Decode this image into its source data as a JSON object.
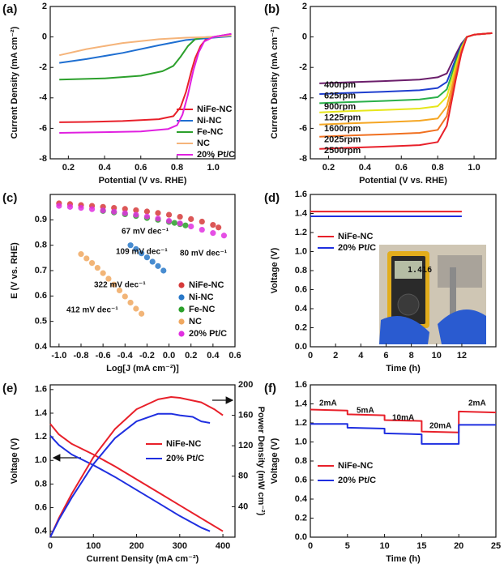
{
  "chart_data": [
    {
      "panel": "(a)",
      "type": "line",
      "xlabel": "Potential (V vs. RHE)",
      "ylabel": "Current Density (mA cm⁻²)",
      "xlim": [
        0.1,
        1.12
      ],
      "ylim": [
        -8,
        2
      ],
      "xticks": [
        0.2,
        0.4,
        0.6,
        0.8,
        {
          "value": 1,
          "label": "1.0"
        }
      ],
      "yticks": [
        -8,
        -6,
        -4,
        -2,
        0,
        2
      ],
      "series": [
        {
          "name": "NiFe-NC",
          "color": "#e8202a",
          "x": [
            0.15,
            0.3,
            0.5,
            0.7,
            0.78,
            0.82,
            0.85,
            0.88,
            0.9,
            0.93,
            0.96,
            1.0,
            1.05,
            1.1
          ],
          "values": [
            -5.6,
            -5.58,
            -5.52,
            -5.4,
            -5.2,
            -4.6,
            -3.6,
            -2.2,
            -1.4,
            -0.6,
            -0.15,
            0.0,
            0.1,
            0.2
          ]
        },
        {
          "name": "Ni-NC",
          "color": "#1f6fd1",
          "x": [
            0.15,
            0.3,
            0.5,
            0.7,
            0.85,
            1.0,
            1.1
          ],
          "values": [
            -1.7,
            -1.45,
            -1.05,
            -0.55,
            -0.2,
            -0.05,
            0.05
          ]
        },
        {
          "name": "Fe-NC",
          "color": "#2ca02c",
          "x": [
            0.15,
            0.4,
            0.6,
            0.72,
            0.78,
            0.82,
            0.86,
            0.9,
            0.95,
            1.0,
            1.1
          ],
          "values": [
            -2.8,
            -2.72,
            -2.55,
            -2.25,
            -1.9,
            -1.3,
            -0.6,
            -0.15,
            -0.02,
            0.0,
            0.1
          ]
        },
        {
          "name": "NC",
          "color": "#f5b47a",
          "x": [
            0.15,
            0.3,
            0.5,
            0.7,
            0.85,
            1.0,
            1.1
          ],
          "values": [
            -1.2,
            -0.8,
            -0.4,
            -0.15,
            -0.05,
            0.0,
            0.1
          ]
        },
        {
          "name": "20% Pt/C",
          "color": "#e020e0",
          "x": [
            0.15,
            0.4,
            0.6,
            0.75,
            0.8,
            0.83,
            0.86,
            0.89,
            0.92,
            0.95,
            1.0,
            1.05,
            1.1
          ],
          "values": [
            -6.3,
            -6.25,
            -6.2,
            -6.05,
            -5.8,
            -5.1,
            -3.8,
            -2.2,
            -1.0,
            -0.3,
            0.0,
            0.1,
            0.2
          ]
        }
      ]
    },
    {
      "panel": "(b)",
      "type": "line",
      "xlabel": "Potential (V vs. RHE)",
      "ylabel": "Current Density (mA cm⁻²)",
      "xlim": [
        0.1,
        1.12
      ],
      "ylim": [
        -8,
        2
      ],
      "xticks": [
        0.2,
        0.4,
        0.6,
        0.8,
        {
          "value": 1,
          "label": "1.0"
        }
      ],
      "yticks": [
        -8,
        -6,
        -4,
        -2,
        0,
        2
      ],
      "x": [
        0.15,
        0.3,
        0.5,
        0.7,
        0.8,
        0.85,
        0.88,
        0.9,
        0.93,
        0.96,
        1.0,
        1.1
      ],
      "series": [
        {
          "name": "400rpm",
          "color": "#6b1e6b",
          "values": [
            -3.05,
            -2.98,
            -2.9,
            -2.8,
            -2.65,
            -2.4,
            -1.65,
            -1.14,
            -0.45,
            0,
            0.15,
            0.25
          ]
        },
        {
          "name": "625rpm",
          "color": "#1f3fcf",
          "values": [
            -3.75,
            -3.68,
            -3.6,
            -3.5,
            -3.35,
            -2.96,
            -2.04,
            -1.41,
            -0.56,
            0,
            0.15,
            0.25
          ]
        },
        {
          "name": "900rpm",
          "color": "#2ab04a",
          "values": [
            -4.35,
            -4.28,
            -4.2,
            -4.1,
            -3.95,
            -3.44,
            -2.37,
            -1.63,
            -0.65,
            0,
            0.15,
            0.25
          ]
        },
        {
          "name": "1225rpm",
          "color": "#e6e61a",
          "values": [
            -4.95,
            -4.88,
            -4.8,
            -4.7,
            -4.55,
            -3.92,
            -2.7,
            -1.86,
            -0.74,
            0,
            0.15,
            0.25
          ]
        },
        {
          "name": "1600rpm",
          "color": "#f5a623",
          "values": [
            -5.75,
            -5.68,
            -5.6,
            -5.5,
            -5.35,
            -4.56,
            -3.14,
            -2.17,
            -0.86,
            0,
            0.15,
            0.25
          ]
        },
        {
          "name": "2025rpm",
          "color": "#f07020",
          "values": [
            -6.55,
            -6.48,
            -6.4,
            -6.3,
            -6.1,
            -5.2,
            -3.58,
            -2.47,
            -0.98,
            0,
            0.15,
            0.25
          ]
        },
        {
          "name": "2500rpm",
          "color": "#e8202a",
          "values": [
            -7.35,
            -7.28,
            -7.2,
            -7.1,
            -6.9,
            -5.84,
            -4.02,
            -2.77,
            -1.1,
            0,
            0.15,
            0.25
          ]
        }
      ]
    },
    {
      "panel": "(c)",
      "type": "scatter",
      "xlabel": "Log[J (mA cm⁻²)]",
      "ylabel": "E (V vs. RHE)",
      "xlim": [
        -1.08,
        0.6
      ],
      "ylim": [
        0.4,
        1.0
      ],
      "xticks": [
        {
          "value": -1,
          "label": "-1.0"
        },
        -0.8,
        -0.6,
        -0.4,
        -0.2,
        {
          "value": 0,
          "label": "0.0"
        },
        0.2,
        0.4,
        0.6
      ],
      "yticks": [
        0.4,
        0.5,
        0.6,
        0.7,
        0.8,
        0.9
      ],
      "series": [
        {
          "name": "NiFe-NC",
          "color": "#d63a3a",
          "x": [
            -1.0,
            -0.9,
            -0.8,
            -0.7,
            -0.6,
            -0.5,
            -0.4,
            -0.3,
            -0.2,
            -0.1,
            0.0,
            0.1,
            0.2,
            0.3,
            0.4,
            0.45
          ],
          "values": [
            0.965,
            0.962,
            0.958,
            0.955,
            0.951,
            0.947,
            0.943,
            0.938,
            0.933,
            0.927,
            0.92,
            0.912,
            0.903,
            0.893,
            0.88,
            0.87
          ]
        },
        {
          "name": "Ni-NC",
          "color": "#2878c8",
          "x": [
            -0.35,
            -0.3,
            -0.25,
            -0.2,
            -0.15,
            -0.1,
            -0.05
          ],
          "values": [
            0.8,
            0.785,
            0.768,
            0.752,
            0.735,
            0.718,
            0.7
          ]
        },
        {
          "name": "Fe-NC",
          "color": "#2aa02a",
          "x": [
            -0.6,
            -0.5,
            -0.4,
            -0.3,
            -0.2,
            -0.1,
            0.0,
            0.05,
            0.1,
            0.15
          ],
          "values": [
            0.935,
            0.929,
            0.922,
            0.915,
            0.907,
            0.9,
            0.892,
            0.888,
            0.883,
            0.878
          ]
        },
        {
          "name": "NC",
          "color": "#f0a860",
          "x": [
            -0.8,
            -0.75,
            -0.7,
            -0.65,
            -0.6,
            -0.55,
            -0.5,
            -0.45,
            -0.4,
            -0.35,
            -0.3,
            -0.25
          ],
          "values": [
            0.765,
            0.748,
            0.73,
            0.711,
            0.69,
            0.668,
            0.645,
            0.622,
            0.598,
            0.574,
            0.55,
            0.53
          ]
        },
        {
          "name": "20% Pt/C",
          "color": "#e030e0",
          "x": [
            -1.0,
            -0.9,
            -0.8,
            -0.7,
            -0.6,
            -0.5,
            -0.4,
            -0.3,
            -0.2,
            -0.1,
            0.0,
            0.1,
            0.2,
            0.3,
            0.4,
            0.5
          ],
          "values": [
            0.955,
            0.951,
            0.947,
            0.942,
            0.937,
            0.932,
            0.926,
            0.92,
            0.913,
            0.905,
            0.896,
            0.886,
            0.874,
            0.861,
            0.848,
            0.838
          ]
        }
      ],
      "annotations": [
        {
          "text": "67 mV dec⁻¹",
          "color": "#d63a3a"
        },
        {
          "text": "109 mV dec⁻¹",
          "color": "#2aa02a"
        },
        {
          "text": "80 mV dec⁻¹",
          "color": "#e030e0"
        },
        {
          "text": "322 mV dec⁻¹",
          "color": "#2878c8"
        },
        {
          "text": "412 mV dec⁻¹",
          "color": "#f0a860"
        }
      ]
    },
    {
      "panel": "(d)",
      "type": "line",
      "xlabel": "Time (h)",
      "ylabel": "Voltage (V)",
      "xlim": [
        0,
        14.7
      ],
      "ylim": [
        0,
        1.6
      ],
      "xticks": [
        0,
        2,
        4,
        6,
        8,
        10,
        12
      ],
      "yticks": [
        {
          "value": 0,
          "label": "0.0"
        },
        0.2,
        0.4,
        0.6,
        0.8,
        {
          "value": 1,
          "label": "1.0"
        },
        1.2,
        1.4,
        1.6
      ],
      "x": [
        0,
        12
      ],
      "series": [
        {
          "name": "NiFe-NC",
          "color": "#e8202a",
          "values": [
            1.42,
            1.42
          ]
        },
        {
          "name": "20% Pt/C",
          "color": "#1f2fe0",
          "values": [
            1.37,
            1.37
          ]
        }
      ],
      "annotations": [
        {
          "text": "1.416",
          "color": "#1a1a1a"
        }
      ]
    },
    {
      "panel": "(e)",
      "type": "line",
      "xlabel": "Current Density (mA cm⁻²)",
      "ylabel": "Voltage (V)",
      "y2label": "Power Density (mW cm⁻²)",
      "xlim": [
        0,
        428
      ],
      "ylim": [
        0.35,
        1.64
      ],
      "y2lim": [
        0,
        200
      ],
      "xticks": [
        0,
        100,
        200,
        300,
        400
      ],
      "yticks": [
        0.4,
        0.6,
        0.8,
        {
          "value": 1,
          "label": "1.0"
        },
        1.2,
        1.4,
        1.6
      ],
      "y2ticks": [
        40,
        80,
        120,
        160,
        200
      ],
      "series": [
        {
          "name": "NiFe-NC",
          "color": "#e8202a",
          "x": [
            0,
            20,
            50,
            100,
            150,
            200,
            250,
            300,
            350,
            400
          ],
          "values": [
            1.31,
            1.22,
            1.14,
            1.05,
            0.95,
            0.84,
            0.73,
            0.62,
            0.51,
            0.4
          ]
        },
        {
          "name": "20% Pt/C",
          "color": "#1f2fe0",
          "x": [
            0,
            20,
            50,
            100,
            150,
            200,
            250,
            300,
            350,
            370
          ],
          "values": [
            1.21,
            1.13,
            1.05,
            0.96,
            0.86,
            0.75,
            0.64,
            0.53,
            0.43,
            0.4
          ]
        },
        {
          "color": "#e8202a",
          "axis": "y2",
          "x": [
            0,
            20,
            50,
            100,
            150,
            200,
            250,
            280,
            300,
            350,
            380,
            400
          ],
          "values": [
            0,
            25,
            57,
            105,
            142,
            168,
            181,
            184,
            183,
            177,
            168,
            160
          ]
        },
        {
          "color": "#1f2fe0",
          "axis": "y2",
          "x": [
            0,
            20,
            50,
            100,
            150,
            200,
            250,
            280,
            300,
            330,
            350,
            370
          ],
          "values": [
            0,
            23,
            52,
            96,
            130,
            152,
            162,
            162,
            160,
            158,
            152,
            150
          ]
        }
      ]
    },
    {
      "panel": "(f)",
      "type": "line",
      "xlabel": "Time (h)",
      "ylabel": "Voltage (V)",
      "xlim": [
        0,
        25
      ],
      "ylim": [
        0,
        1.6
      ],
      "xticks": [
        0,
        5,
        10,
        15,
        20,
        25
      ],
      "yticks": [
        {
          "value": 0,
          "label": "0.0"
        },
        0.2,
        0.4,
        0.6,
        0.8,
        {
          "value": 1,
          "label": "1.0"
        },
        1.2,
        1.4,
        1.6
      ],
      "x": [
        0,
        5,
        5,
        10,
        10,
        15,
        15,
        20,
        20,
        25
      ],
      "series": [
        {
          "name": "NiFe-NC",
          "color": "#e8202a",
          "values": [
            1.34,
            1.33,
            1.29,
            1.28,
            1.23,
            1.22,
            1.11,
            1.1,
            1.32,
            1.31
          ]
        },
        {
          "name": "20% Pt/C",
          "color": "#1f2fe0",
          "values": [
            1.19,
            1.19,
            1.15,
            1.14,
            1.09,
            1.08,
            0.98,
            0.98,
            1.18,
            1.18
          ]
        }
      ],
      "annotations": [
        {
          "text": "2mA",
          "color": "#111"
        },
        {
          "text": "5mA",
          "color": "#111"
        },
        {
          "text": "10mA",
          "color": "#111"
        },
        {
          "text": "20mA",
          "color": "#111"
        },
        {
          "text": "2mA",
          "color": "#111"
        }
      ]
    }
  ]
}
